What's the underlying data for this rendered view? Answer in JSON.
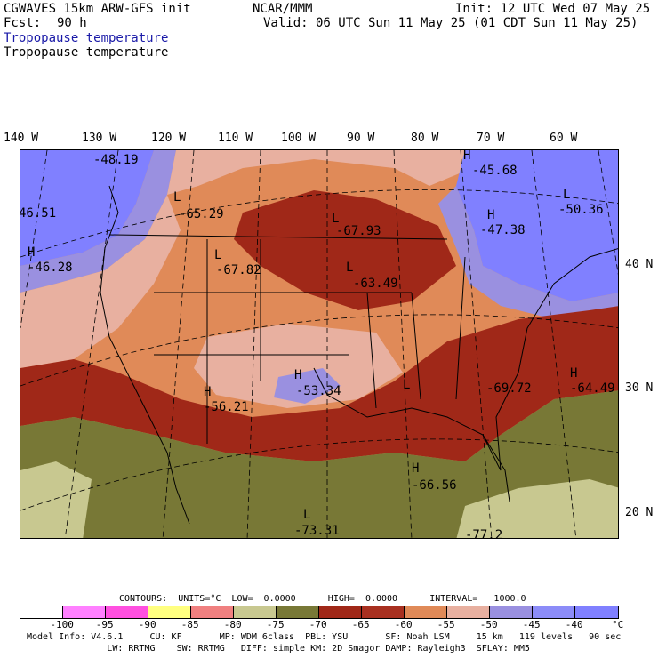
{
  "header": {
    "model": "CGWAVES 15km ARW-GFS init",
    "org": "NCAR/MMM",
    "init": "Init: 12 UTC Wed 07 May 25",
    "fcst_label": "Fcst:",
    "fcst_value": "90 h",
    "valid": "Valid: 06 UTC Sun 11 May 25 (01 CDT Sun 11 May 25)",
    "field_title_1": "Tropopause temperature",
    "field_title_2": "Tropopause temperature"
  },
  "longitude_labels": [
    "140 W",
    "130 W",
    "120 W",
    "110 W",
    "100 W",
    "90 W",
    "80 W",
    "70 W",
    "60 W"
  ],
  "latitude_labels": [
    "40 N",
    "30 N",
    "20 N"
  ],
  "map": {
    "extremes": [
      {
        "type": "H",
        "value": "-48.19"
      },
      {
        "type": "H",
        "value": "-45.68"
      },
      {
        "type": "L",
        "value": "-65.29"
      },
      {
        "type": "H",
        "value": "-47.38"
      },
      {
        "type": "L",
        "value": "-50.36"
      },
      {
        "type": "",
        "value": "46.51"
      },
      {
        "type": "H",
        "value": "-46.28"
      },
      {
        "type": "L",
        "value": "-67.82"
      },
      {
        "type": "L",
        "value": "-67.93"
      },
      {
        "type": "L",
        "value": "-63.49"
      },
      {
        "type": "H",
        "value": "-53.34"
      },
      {
        "type": "H",
        "value": "-56.21"
      },
      {
        "type": "L",
        "value": "-69.72"
      },
      {
        "type": "H",
        "value": "-64.49"
      },
      {
        "type": "H",
        "value": "-66.56"
      },
      {
        "type": "L",
        "value": "-73.31"
      },
      {
        "type": "",
        "value": "-77.2"
      }
    ]
  },
  "contours": {
    "text": "CONTOURS:  UNITS=°C  LOW=  0.0000      HIGH=  0.0000      INTERVAL=   1000.0"
  },
  "colorbar": {
    "colors": [
      "#ffffff",
      "#ff80ff",
      "#ff50e0",
      "#ffff80",
      "#f08080",
      "#c8c890",
      "#787836",
      "#a02818",
      "#a83020",
      "#e08a58",
      "#e8b0a0",
      "#9a90e0",
      "#8c8cf8",
      "#8080ff"
    ],
    "ticks": [
      "-100",
      "-95",
      "-90",
      "-85",
      "-80",
      "-75",
      "-70",
      "-65",
      "-60",
      "-55",
      "-50",
      "-45",
      "-40",
      "°C"
    ]
  },
  "footer": {
    "line1": "Model Info: V4.6.1     CU: KF       MP: WDM 6class  PBL: YSU       SF: Noah LSM     15 km   119 levels   90 sec",
    "line2": "               LW: RRTMG    SW: RRTMG   DIFF: simple KM: 2D Smagor DAMP: Rayleigh3  SFLAY: MM5"
  },
  "legend_colors": {
    "olive": "#787836",
    "sage": "#c8c890",
    "darkred": "#a02818",
    "orange": "#e08a58",
    "pink": "#e8b0a0",
    "violet": "#9a90e0",
    "blue": "#8080ff"
  }
}
